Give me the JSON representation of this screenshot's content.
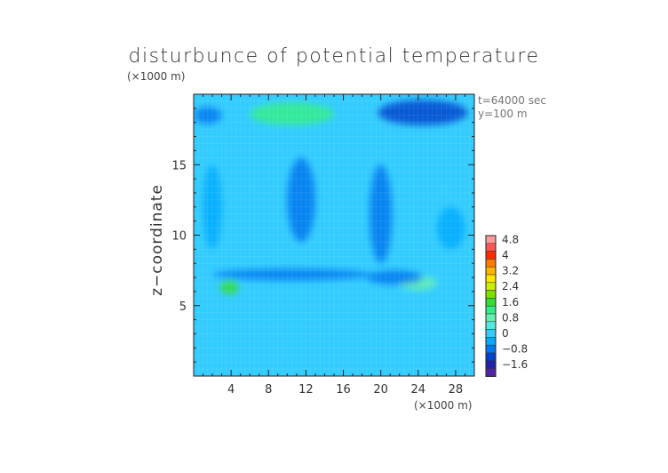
{
  "chart_data": {
    "type": "heatmap",
    "title": "disturbunce of potential temperature",
    "ylabel": "z−coordinate",
    "xlabel": "",
    "x_unit_label": "(×1000 m)",
    "y_unit_label": "(×1000 m)",
    "time_label": "t=64000 sec",
    "y_label_info": "y=100 m",
    "xlim": [
      0,
      30
    ],
    "ylim": [
      0,
      20
    ],
    "x_ticks": [
      4,
      8,
      12,
      16,
      20,
      24,
      28
    ],
    "y_ticks": [
      5,
      10,
      15
    ],
    "colorbar": {
      "ticks": [
        "4.8",
        "4",
        "3.2",
        "2.4",
        "1.6",
        "0.8",
        "0",
        "−0.8",
        "−1.6"
      ],
      "levels": [
        {
          "from": 4.8,
          "to": 5.6,
          "color": "#ff9a9a"
        },
        {
          "from": 4.4,
          "to": 4.8,
          "color": "#ff5555"
        },
        {
          "from": 4.0,
          "to": 4.4,
          "color": "#ff2a00"
        },
        {
          "from": 3.6,
          "to": 4.0,
          "color": "#ff7a00"
        },
        {
          "from": 3.2,
          "to": 3.6,
          "color": "#ffb400"
        },
        {
          "from": 2.8,
          "to": 3.2,
          "color": "#ffe600"
        },
        {
          "from": 2.4,
          "to": 2.8,
          "color": "#c8f000"
        },
        {
          "from": 2.0,
          "to": 2.4,
          "color": "#7ee000"
        },
        {
          "from": 1.6,
          "to": 2.0,
          "color": "#33dd33"
        },
        {
          "from": 1.2,
          "to": 1.6,
          "color": "#33ee88"
        },
        {
          "from": 0.8,
          "to": 1.2,
          "color": "#66f0b0"
        },
        {
          "from": 0.4,
          "to": 0.8,
          "color": "#55e8e0"
        },
        {
          "from": 0.0,
          "to": 0.4,
          "color": "#33ccff"
        },
        {
          "from": -0.4,
          "to": 0.0,
          "color": "#00aaff"
        },
        {
          "from": -0.8,
          "to": -0.4,
          "color": "#0077ee"
        },
        {
          "from": -1.2,
          "to": -0.8,
          "color": "#0044cc"
        },
        {
          "from": -1.6,
          "to": -1.2,
          "color": "#2222aa"
        },
        {
          "from": -2.0,
          "to": -1.6,
          "color": "#5522aa"
        }
      ]
    },
    "features": [
      {
        "kind": "positive",
        "x": 10.5,
        "y": 18.6,
        "rx": 4.5,
        "ry": 0.8,
        "value": 1.4
      },
      {
        "kind": "positive",
        "x": 3.8,
        "y": 6.3,
        "rx": 1.0,
        "ry": 0.5,
        "value": 1.6
      },
      {
        "kind": "positive",
        "x": 24.0,
        "y": 6.6,
        "rx": 2.0,
        "ry": 0.5,
        "value": 0.9
      },
      {
        "kind": "negative",
        "x": 24.5,
        "y": 18.7,
        "rx": 4.8,
        "ry": 0.9,
        "value": -1.0
      },
      {
        "kind": "negative",
        "x": 1.5,
        "y": 18.5,
        "rx": 1.5,
        "ry": 0.6,
        "value": -0.6
      },
      {
        "kind": "negative",
        "x": 10.5,
        "y": 7.2,
        "rx": 8.5,
        "ry": 0.4,
        "value": -0.6
      },
      {
        "kind": "negative",
        "x": 21.5,
        "y": 7.0,
        "rx": 3.0,
        "ry": 0.5,
        "value": -0.6
      },
      {
        "kind": "negative",
        "x": 11.5,
        "y": 12.5,
        "rx": 1.5,
        "ry": 3.0,
        "value": -0.5
      },
      {
        "kind": "negative",
        "x": 2.0,
        "y": 12.0,
        "rx": 1.0,
        "ry": 3.0,
        "value": -0.4
      },
      {
        "kind": "negative",
        "x": 20.0,
        "y": 11.5,
        "rx": 1.2,
        "ry": 3.5,
        "value": -0.5
      },
      {
        "kind": "negative",
        "x": 27.5,
        "y": 10.5,
        "rx": 1.5,
        "ry": 1.5,
        "value": -0.4
      }
    ]
  }
}
